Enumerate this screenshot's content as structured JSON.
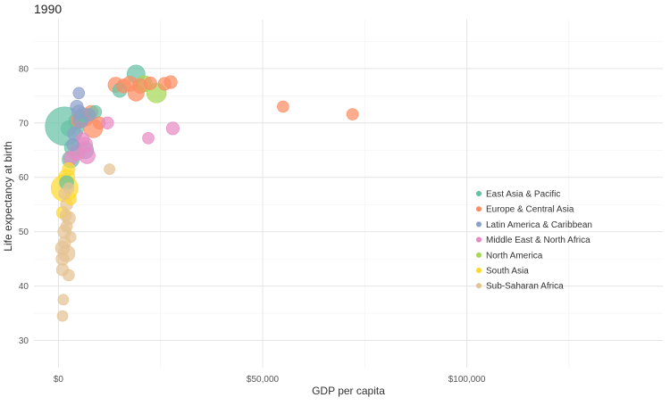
{
  "chart_data": {
    "type": "scatter",
    "title": "1990",
    "xlabel": "GDP per capita",
    "ylabel": "Life expectancy at birth",
    "xlim": [
      -6000,
      148000
    ],
    "ylim": [
      25,
      89
    ],
    "x_ticks": [
      {
        "value": 0,
        "label": "$0"
      },
      {
        "value": 50000,
        "label": "$50,000"
      },
      {
        "value": 100000,
        "label": "$100,000"
      }
    ],
    "y_ticks": [
      {
        "value": 30,
        "label": "30"
      },
      {
        "value": 40,
        "label": "40"
      },
      {
        "value": 50,
        "label": "50"
      },
      {
        "value": 60,
        "label": "60"
      },
      {
        "value": 70,
        "label": "70"
      },
      {
        "value": 80,
        "label": "80"
      }
    ],
    "grid": true,
    "legend_position": "right",
    "size_encoding": "bubble size relative to population",
    "series": [
      {
        "name": "East Asia & Pacific",
        "color": "#66c2a5",
        "points": [
          {
            "x": 1500,
            "y": 69.4,
            "size": 1.0
          },
          {
            "x": 19000,
            "y": 79.0,
            "size": 0.18
          },
          {
            "x": 3500,
            "y": 65.5,
            "size": 0.15
          },
          {
            "x": 3000,
            "y": 63.3,
            "size": 0.16
          },
          {
            "x": 4500,
            "y": 70.3,
            "size": 0.14
          },
          {
            "x": 2500,
            "y": 69.0,
            "size": 0.12
          },
          {
            "x": 2000,
            "y": 59.0,
            "size": 0.1
          },
          {
            "x": 6000,
            "y": 71.5,
            "size": 0.1
          },
          {
            "x": 15000,
            "y": 76.0,
            "size": 0.1
          },
          {
            "x": 9000,
            "y": 72.0,
            "size": 0.08
          }
        ]
      },
      {
        "name": "Europe & Central Asia",
        "color": "#fc8d62",
        "points": [
          {
            "x": 8500,
            "y": 69.0,
            "size": 0.2
          },
          {
            "x": 6500,
            "y": 71.0,
            "size": 0.17
          },
          {
            "x": 19000,
            "y": 75.5,
            "size": 0.14
          },
          {
            "x": 14000,
            "y": 77.0,
            "size": 0.12
          },
          {
            "x": 17500,
            "y": 77.2,
            "size": 0.12
          },
          {
            "x": 5000,
            "y": 70.5,
            "size": 0.12
          },
          {
            "x": 20000,
            "y": 76.8,
            "size": 0.11
          },
          {
            "x": 16000,
            "y": 76.8,
            "size": 0.1
          },
          {
            "x": 8000,
            "y": 72.0,
            "size": 0.09
          },
          {
            "x": 22500,
            "y": 77.3,
            "size": 0.08
          },
          {
            "x": 26000,
            "y": 77.2,
            "size": 0.08
          },
          {
            "x": 27500,
            "y": 77.5,
            "size": 0.08
          },
          {
            "x": 55000,
            "y": 73.0,
            "size": 0.06
          },
          {
            "x": 72000,
            "y": 71.6,
            "size": 0.06
          },
          {
            "x": 10000,
            "y": 70.0,
            "size": 0.07
          }
        ]
      },
      {
        "name": "Latin America & Caribbean",
        "color": "#8da0cb",
        "points": [
          {
            "x": 6500,
            "y": 65.0,
            "size": 0.16
          },
          {
            "x": 5500,
            "y": 70.5,
            "size": 0.12
          },
          {
            "x": 5000,
            "y": 72.0,
            "size": 0.1
          },
          {
            "x": 4000,
            "y": 68.0,
            "size": 0.1
          },
          {
            "x": 4500,
            "y": 73.0,
            "size": 0.08
          },
          {
            "x": 7500,
            "y": 71.5,
            "size": 0.08
          },
          {
            "x": 3500,
            "y": 66.0,
            "size": 0.07
          },
          {
            "x": 5000,
            "y": 75.5,
            "size": 0.06
          }
        ]
      },
      {
        "name": "Middle East & North Africa",
        "color": "#e78ac3",
        "points": [
          {
            "x": 7000,
            "y": 64.0,
            "size": 0.14
          },
          {
            "x": 6500,
            "y": 66.0,
            "size": 0.12
          },
          {
            "x": 4500,
            "y": 64.5,
            "size": 0.12
          },
          {
            "x": 3000,
            "y": 63.5,
            "size": 0.1
          },
          {
            "x": 28000,
            "y": 69.0,
            "size": 0.08
          },
          {
            "x": 6000,
            "y": 67.0,
            "size": 0.08
          },
          {
            "x": 12000,
            "y": 70.0,
            "size": 0.07
          },
          {
            "x": 22000,
            "y": 67.2,
            "size": 0.06
          }
        ]
      },
      {
        "name": "North America",
        "color": "#a6d854",
        "points": [
          {
            "x": 24000,
            "y": 75.5,
            "size": 0.22
          },
          {
            "x": 21000,
            "y": 77.2,
            "size": 0.14
          }
        ]
      },
      {
        "name": "South Asia",
        "color": "#ffd92f",
        "points": [
          {
            "x": 1500,
            "y": 58.0,
            "size": 0.45
          },
          {
            "x": 2000,
            "y": 60.0,
            "size": 0.14
          },
          {
            "x": 2500,
            "y": 61.5,
            "size": 0.08
          },
          {
            "x": 1000,
            "y": 53.5,
            "size": 0.07
          },
          {
            "x": 3000,
            "y": 56.0,
            "size": 0.06
          }
        ]
      },
      {
        "name": "Sub-Saharan Africa",
        "color": "#e5c494",
        "points": [
          {
            "x": 2000,
            "y": 46.0,
            "size": 0.15
          },
          {
            "x": 1000,
            "y": 47.0,
            "size": 0.1
          },
          {
            "x": 1500,
            "y": 50.0,
            "size": 0.09
          },
          {
            "x": 2500,
            "y": 52.5,
            "size": 0.09
          },
          {
            "x": 1000,
            "y": 45.0,
            "size": 0.08
          },
          {
            "x": 1000,
            "y": 43.0,
            "size": 0.07
          },
          {
            "x": 1500,
            "y": 48.0,
            "size": 0.07
          },
          {
            "x": 2000,
            "y": 55.0,
            "size": 0.07
          },
          {
            "x": 1500,
            "y": 57.0,
            "size": 0.06
          },
          {
            "x": 2500,
            "y": 42.0,
            "size": 0.06
          },
          {
            "x": 1200,
            "y": 37.5,
            "size": 0.05
          },
          {
            "x": 1000,
            "y": 34.5,
            "size": 0.05
          },
          {
            "x": 2000,
            "y": 51.0,
            "size": 0.06
          },
          {
            "x": 1800,
            "y": 53.0,
            "size": 0.06
          },
          {
            "x": 3000,
            "y": 49.0,
            "size": 0.05
          },
          {
            "x": 12500,
            "y": 61.5,
            "size": 0.05
          },
          {
            "x": 2500,
            "y": 58.0,
            "size": 0.05
          }
        ]
      }
    ]
  }
}
